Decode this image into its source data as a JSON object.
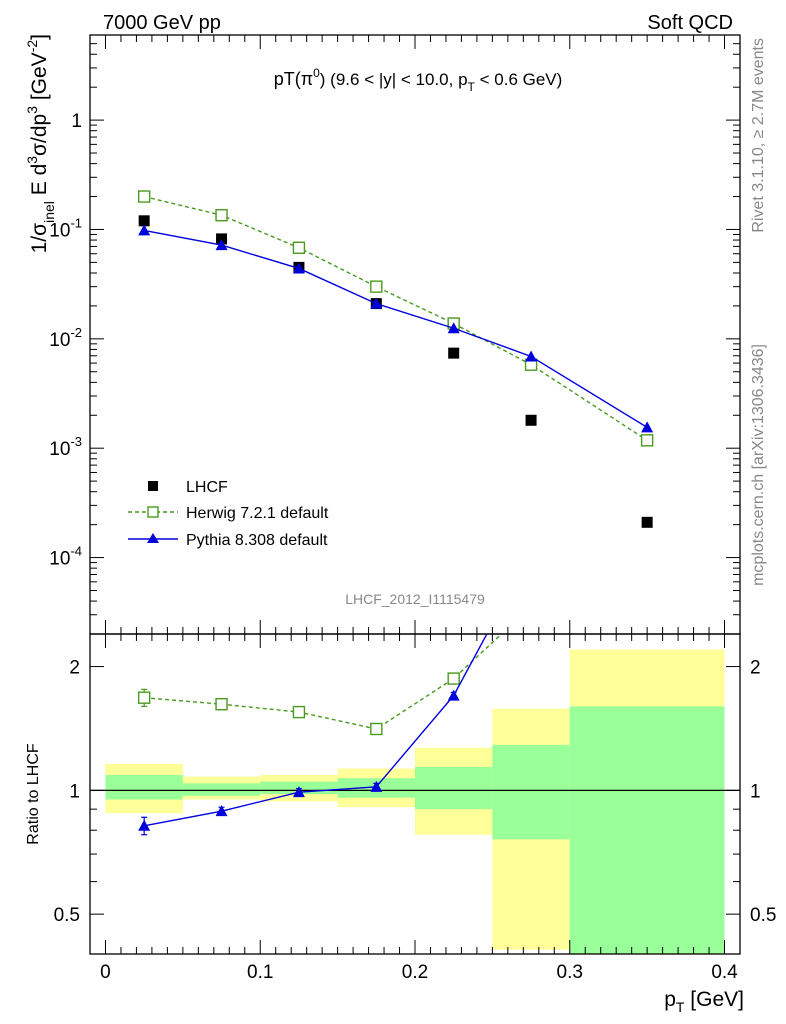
{
  "header": {
    "left": "7000 GeV pp",
    "right": "Soft QCD"
  },
  "side_labels": {
    "rivet": "Rivet 3.1.10, ≥ 2.7M events",
    "mcplots": "mcplots.cern.ch [arXiv:1306.3436]"
  },
  "watermark": "LHCF_2012_I1115479",
  "chart_data": [
    {
      "type": "scatter",
      "title": "pT(π⁰) (9.6 < |y| < 10.0, pT < 0.6 GeV)",
      "title_parts": {
        "main": "pT(π",
        "sup": "0",
        "after": ") (9.6 < |y| < 10.0, p",
        "sub": "T",
        "end": " < 0.6 GeV)"
      },
      "ylabel": "1/σinel E d³σ/dp³ [GeV⁻²]",
      "ylabel_parts": {
        "a": "1/σ",
        "a_sub": "inel",
        "b": " E d",
        "b_sup": "3",
        "c": "σ/dp",
        "c_sup": "3",
        "d": " [GeV",
        "d_sup": "-2",
        "e": "]"
      },
      "yscale": "log",
      "ylim": [
        2e-05,
        6
      ],
      "xlim": [
        -0.01,
        0.41
      ],
      "yticks": [
        {
          "base": "10",
          "exp": "-4",
          "value": 0.0001
        },
        {
          "base": "10",
          "exp": "-3",
          "value": 0.001
        },
        {
          "base": "10",
          "exp": "-2",
          "value": 0.01
        },
        {
          "base": "10",
          "exp": "-1",
          "value": 0.1
        },
        {
          "base": "1",
          "exp": "",
          "value": 1
        }
      ],
      "legend_position": "bottom-left",
      "series": [
        {
          "name": "LHCF",
          "style": "data",
          "color": "#000000",
          "x": [
            0.025,
            0.075,
            0.125,
            0.175,
            0.225,
            0.275,
            0.35
          ],
          "values": [
            0.12,
            0.082,
            0.045,
            0.021,
            0.0074,
            0.0018,
            0.00021
          ]
        },
        {
          "name": "Herwig 7.2.1 default",
          "style": "dashed-open-square",
          "color": "#4a9a1e",
          "x": [
            0.025,
            0.075,
            0.125,
            0.175,
            0.225,
            0.275,
            0.35
          ],
          "values": [
            0.2,
            0.135,
            0.068,
            0.03,
            0.0138,
            0.0058,
            0.00118
          ]
        },
        {
          "name": "Pythia 8.308 default",
          "style": "solid-triangle",
          "color": "#0000dd",
          "x": [
            0.025,
            0.075,
            0.125,
            0.175,
            0.225,
            0.275,
            0.35
          ],
          "values": [
            0.098,
            0.072,
            0.044,
            0.021,
            0.0125,
            0.0069,
            0.00155
          ]
        }
      ]
    },
    {
      "type": "line",
      "ylabel": "Ratio to LHCF",
      "xlabel": "pT [GeV]",
      "xlabel_parts": {
        "main": "p",
        "sub": "T",
        "after": " [GeV]"
      },
      "yscale": "log",
      "ylim": [
        0.4,
        2.4
      ],
      "xlim": [
        -0.01,
        0.41
      ],
      "yticks": [
        0.5,
        1,
        2
      ],
      "ytick_labels": [
        "0.5",
        "1",
        "2"
      ],
      "xticks": [
        0,
        0.1,
        0.2,
        0.3,
        0.4
      ],
      "xtick_labels": [
        "0",
        "0.1",
        "0.2",
        "0.3",
        "0.4"
      ],
      "band_colors": {
        "outer": "#ffff99",
        "inner": "#99ff99"
      },
      "bands": [
        {
          "x0": 0.0,
          "x1": 0.05,
          "outer": [
            0.88,
            1.16
          ],
          "inner": [
            0.95,
            1.09
          ]
        },
        {
          "x0": 0.05,
          "x1": 0.1,
          "outer": [
            0.95,
            1.08
          ],
          "inner": [
            0.97,
            1.04
          ]
        },
        {
          "x0": 0.1,
          "x1": 0.15,
          "outer": [
            0.94,
            1.09
          ],
          "inner": [
            0.98,
            1.05
          ]
        },
        {
          "x0": 0.15,
          "x1": 0.2,
          "outer": [
            0.91,
            1.13
          ],
          "inner": [
            0.96,
            1.07
          ]
        },
        {
          "x0": 0.2,
          "x1": 0.25,
          "outer": [
            0.78,
            1.27
          ],
          "inner": [
            0.9,
            1.14
          ]
        },
        {
          "x0": 0.25,
          "x1": 0.3,
          "outer": [
            0.41,
            1.58
          ],
          "inner": [
            0.76,
            1.29
          ]
        },
        {
          "x0": 0.3,
          "x1": 0.4,
          "outer": [
            0.37,
            2.2
          ],
          "inner": [
            0.37,
            1.6
          ]
        }
      ],
      "reference_line": 1,
      "series": [
        {
          "name": "Herwig 7.2.1 default",
          "style": "dashed-open-square",
          "color": "#4a9a1e",
          "x": [
            0.025,
            0.075,
            0.125,
            0.175,
            0.225,
            0.275
          ],
          "values": [
            1.68,
            1.62,
            1.55,
            1.41,
            1.87,
            2.8
          ],
          "yerr": [
            0.08,
            0.03,
            0.03,
            0.03,
            0.04,
            0
          ]
        },
        {
          "name": "Pythia 8.308 default",
          "style": "solid-triangle",
          "color": "#0000dd",
          "x": [
            0.025,
            0.075,
            0.125,
            0.175,
            0.225,
            0.275
          ],
          "values": [
            0.82,
            0.89,
            0.99,
            1.02,
            1.7,
            3.8
          ],
          "yerr": [
            0.04,
            0.02,
            0.02,
            0.02,
            0.03,
            0
          ]
        }
      ]
    }
  ]
}
